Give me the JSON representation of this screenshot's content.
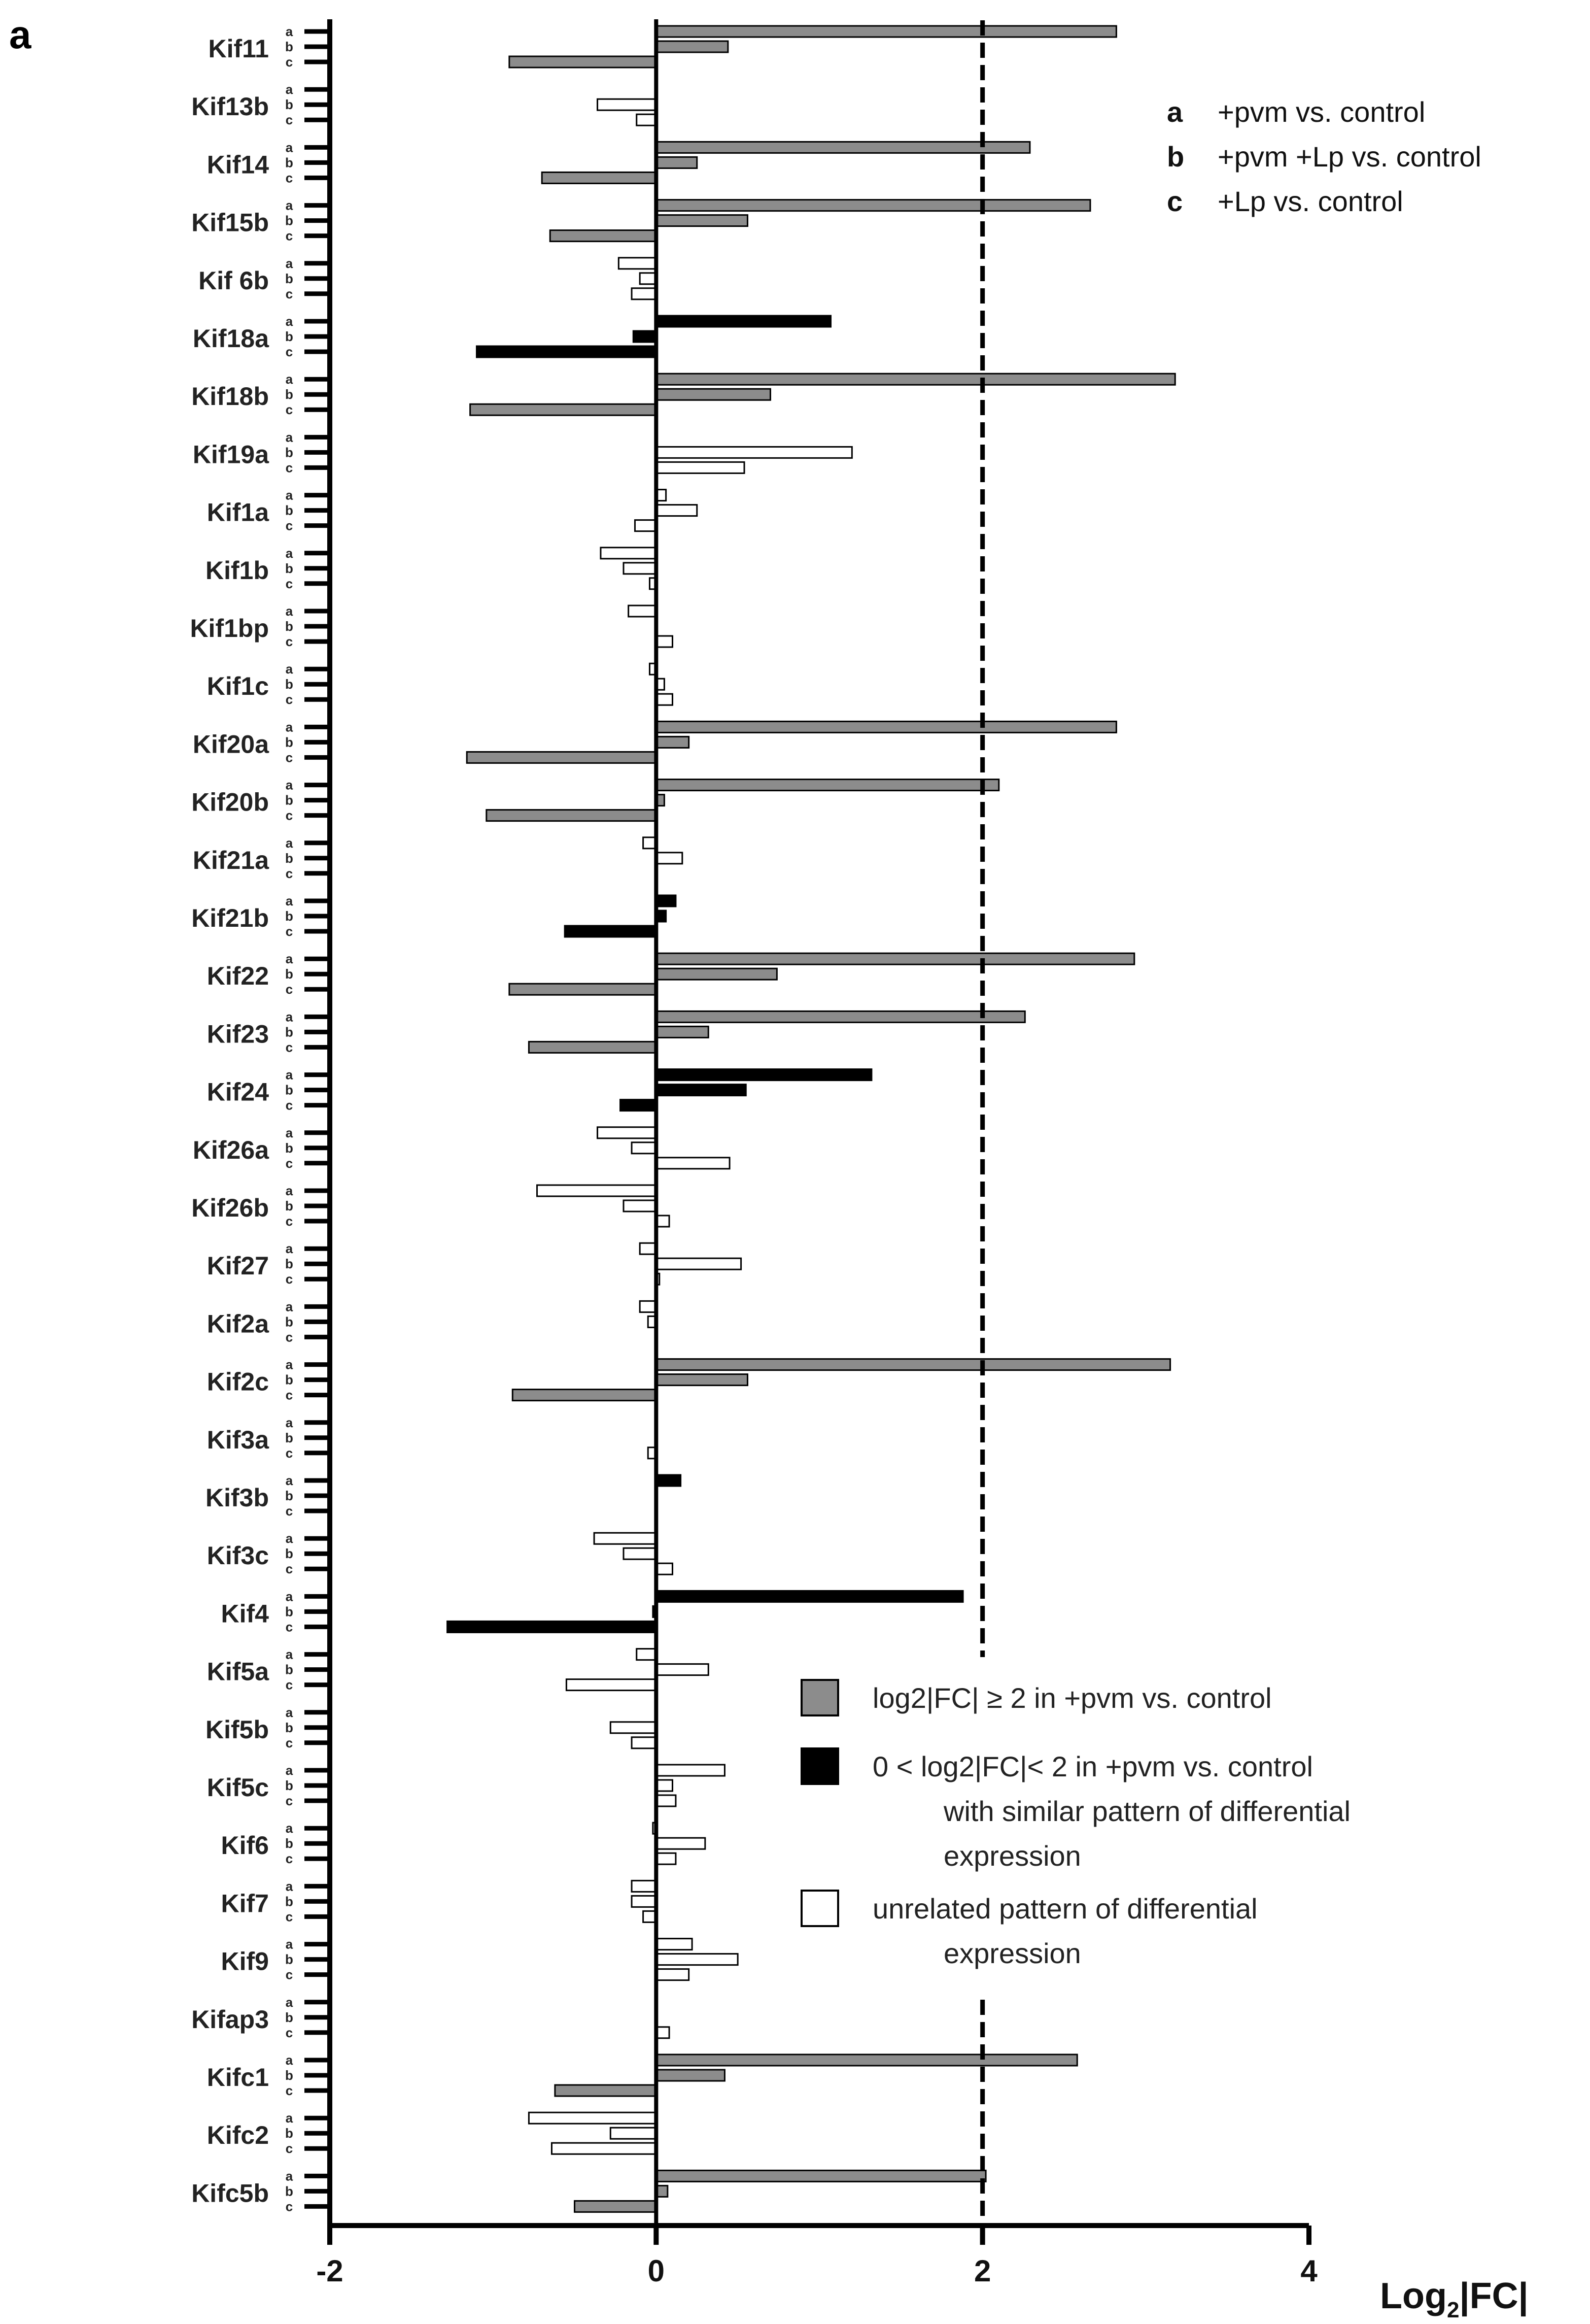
{
  "chart_data": {
    "type": "bar",
    "orientation": "horizontal",
    "panel_label": "a",
    "xlabel": "Log2|FC|",
    "xlabel_main": "Log",
    "xlabel_sub": "2",
    "xlabel_tail": "|FC|",
    "xlim": [
      -2,
      4
    ],
    "xticks": [
      -2,
      0,
      2,
      4
    ],
    "threshold_line": 2,
    "sub_categories": [
      "a",
      "b",
      "c"
    ],
    "comparisons": [
      {
        "letter": "a",
        "text": "+pvm vs. control"
      },
      {
        "letter": "b",
        "text": "+pvm +Lp vs. control"
      },
      {
        "letter": "c",
        "text": "+Lp vs. control"
      }
    ],
    "legend": [
      {
        "category": "gray",
        "color": "#8c8c8c",
        "text": "log2|FC| ≥ 2 in +pvm vs. control"
      },
      {
        "category": "black",
        "color": "#000000",
        "text": "0 < log2|FC|< 2 in +pvm vs. control",
        "text2": "with similar pattern of differential",
        "text3": "expression"
      },
      {
        "category": "white",
        "color": "#ffffff",
        "text": "unrelated pattern of differential",
        "text2": "expression"
      }
    ],
    "genes": [
      {
        "name": "Kif11",
        "cat": "gray",
        "values": [
          2.82,
          0.44,
          -0.9
        ]
      },
      {
        "name": "Kif13b",
        "cat": "white",
        "values": [
          0.0,
          -0.36,
          -0.12
        ]
      },
      {
        "name": "Kif14",
        "cat": "gray",
        "values": [
          2.29,
          0.25,
          -0.7
        ]
      },
      {
        "name": "Kif15b",
        "cat": "gray",
        "values": [
          2.66,
          0.56,
          -0.65
        ]
      },
      {
        "name": "Kif 6b",
        "cat": "white",
        "values": [
          -0.23,
          -0.1,
          -0.15
        ]
      },
      {
        "name": "Kif18a",
        "cat": "black",
        "values": [
          1.07,
          -0.14,
          -1.1
        ]
      },
      {
        "name": "Kif18b",
        "cat": "gray",
        "values": [
          3.18,
          0.7,
          -1.14
        ]
      },
      {
        "name": "Kif19a",
        "cat": "white",
        "values": [
          0.0,
          1.2,
          0.54
        ]
      },
      {
        "name": "Kif1a",
        "cat": "white",
        "values": [
          0.06,
          0.25,
          -0.13
        ]
      },
      {
        "name": "Kif1b",
        "cat": "white",
        "values": [
          -0.34,
          -0.2,
          -0.04
        ]
      },
      {
        "name": "Kif1bp",
        "cat": "white",
        "values": [
          -0.17,
          0.0,
          0.1
        ]
      },
      {
        "name": "Kif1c",
        "cat": "white",
        "values": [
          -0.04,
          0.05,
          0.1
        ]
      },
      {
        "name": "Kif20a",
        "cat": "gray",
        "values": [
          2.82,
          0.2,
          -1.16
        ]
      },
      {
        "name": "Kif20b",
        "cat": "gray",
        "values": [
          2.1,
          0.05,
          -1.04
        ]
      },
      {
        "name": "Kif21a",
        "cat": "white",
        "values": [
          -0.08,
          0.16,
          0.0
        ]
      },
      {
        "name": "Kif21b",
        "cat": "black",
        "values": [
          0.12,
          0.06,
          -0.56
        ]
      },
      {
        "name": "Kif22",
        "cat": "gray",
        "values": [
          2.93,
          0.74,
          -0.9
        ]
      },
      {
        "name": "Kif23",
        "cat": "gray",
        "values": [
          2.26,
          0.32,
          -0.78
        ]
      },
      {
        "name": "Kif24",
        "cat": "black",
        "values": [
          1.32,
          0.55,
          -0.22
        ]
      },
      {
        "name": "Kif26a",
        "cat": "white",
        "values": [
          -0.36,
          -0.15,
          0.45
        ]
      },
      {
        "name": "Kif26b",
        "cat": "white",
        "values": [
          -0.73,
          -0.2,
          0.08
        ]
      },
      {
        "name": "Kif27",
        "cat": "white",
        "values": [
          -0.1,
          0.52,
          0.02
        ]
      },
      {
        "name": "Kif2a",
        "cat": "white",
        "values": [
          -0.1,
          -0.05,
          0.0
        ]
      },
      {
        "name": "Kif2c",
        "cat": "gray",
        "values": [
          3.15,
          0.56,
          -0.88
        ]
      },
      {
        "name": "Kif3a",
        "cat": "white",
        "values": [
          0.0,
          0.0,
          -0.05
        ]
      },
      {
        "name": "Kif3b",
        "cat": "black",
        "values": [
          0.15,
          0.0,
          0.0
        ]
      },
      {
        "name": "Kif3c",
        "cat": "white",
        "values": [
          -0.38,
          -0.2,
          0.1
        ]
      },
      {
        "name": "Kif4",
        "cat": "black",
        "values": [
          1.88,
          -0.02,
          -1.28
        ]
      },
      {
        "name": "Kif5a",
        "cat": "white",
        "values": [
          -0.12,
          0.32,
          -0.55
        ]
      },
      {
        "name": "Kif5b",
        "cat": "white",
        "values": [
          0.0,
          -0.28,
          -0.15
        ]
      },
      {
        "name": "Kif5c",
        "cat": "white",
        "values": [
          0.42,
          0.1,
          0.12
        ]
      },
      {
        "name": "Kif6",
        "cat": "white",
        "values": [
          -0.02,
          0.3,
          0.12
        ]
      },
      {
        "name": "Kif7",
        "cat": "white",
        "values": [
          -0.15,
          -0.15,
          -0.08
        ]
      },
      {
        "name": "Kif9",
        "cat": "white",
        "values": [
          0.22,
          0.5,
          0.2
        ]
      },
      {
        "name": "Kifap3",
        "cat": "white",
        "values": [
          0.0,
          0.0,
          0.08
        ]
      },
      {
        "name": "Kifc1",
        "cat": "gray",
        "values": [
          2.58,
          0.42,
          -0.62
        ]
      },
      {
        "name": "Kifc2",
        "cat": "white",
        "values": [
          -0.78,
          -0.28,
          -0.64
        ]
      },
      {
        "name": "Kifc5b",
        "cat": "gray",
        "values": [
          2.02,
          0.07,
          -0.5
        ]
      }
    ]
  }
}
